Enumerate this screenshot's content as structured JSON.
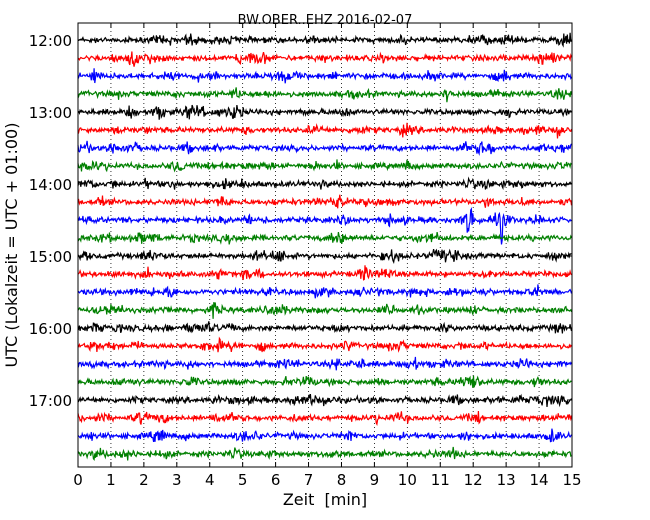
{
  "chart_data": {
    "type": "line",
    "title": "BW.OBER..EHZ 2016-02-07",
    "xlabel": "Zeit  [min]",
    "ylabel": "UTC (Lokalzeit = UTC + 01:00)",
    "xlim": [
      0,
      15
    ],
    "x_ticks": [
      "0",
      "1",
      "2",
      "3",
      "4",
      "5",
      "6",
      "7",
      "8",
      "9",
      "10",
      "11",
      "12",
      "13",
      "14",
      "15"
    ],
    "y_tick_labels": [
      "12:00",
      "13:00",
      "14:00",
      "15:00",
      "16:00",
      "17:00"
    ],
    "grid": {
      "x": true,
      "y": false,
      "style": "dotted"
    },
    "series_colors": [
      "#000000",
      "#ff0000",
      "#0000ff",
      "#008000"
    ],
    "traces": [
      {
        "start": "12:00",
        "color": "#000000"
      },
      {
        "start": "12:15",
        "color": "#ff0000"
      },
      {
        "start": "12:30",
        "color": "#0000ff"
      },
      {
        "start": "12:45",
        "color": "#008000"
      },
      {
        "start": "13:00",
        "color": "#000000"
      },
      {
        "start": "13:15",
        "color": "#ff0000"
      },
      {
        "start": "13:30",
        "color": "#0000ff"
      },
      {
        "start": "13:45",
        "color": "#008000"
      },
      {
        "start": "14:00",
        "color": "#000000"
      },
      {
        "start": "14:15",
        "color": "#ff0000"
      },
      {
        "start": "14:30",
        "color": "#0000ff",
        "events_min": [
          11.85,
          12.8
        ]
      },
      {
        "start": "14:45",
        "color": "#008000"
      },
      {
        "start": "15:00",
        "color": "#000000"
      },
      {
        "start": "15:15",
        "color": "#ff0000"
      },
      {
        "start": "15:30",
        "color": "#0000ff"
      },
      {
        "start": "15:45",
        "color": "#008000"
      },
      {
        "start": "16:00",
        "color": "#000000"
      },
      {
        "start": "16:15",
        "color": "#ff0000"
      },
      {
        "start": "16:30",
        "color": "#0000ff"
      },
      {
        "start": "16:45",
        "color": "#008000"
      },
      {
        "start": "17:00",
        "color": "#000000"
      },
      {
        "start": "17:15",
        "color": "#ff0000"
      },
      {
        "start": "17:30",
        "color": "#0000ff"
      },
      {
        "start": "17:45",
        "color": "#008000"
      }
    ]
  }
}
